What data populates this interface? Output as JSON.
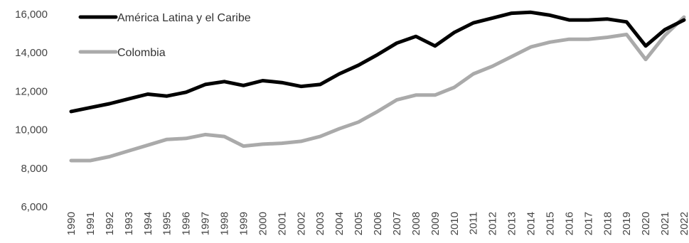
{
  "chart_data": {
    "type": "line",
    "title": "",
    "xlabel": "",
    "ylabel": "",
    "x": [
      "1990",
      "1991",
      "1992",
      "1993",
      "1994",
      "1995",
      "1996",
      "1997",
      "1998",
      "1999",
      "2000",
      "2001",
      "2002",
      "2003",
      "2004",
      "2005",
      "2006",
      "2007",
      "2008",
      "2009",
      "2010",
      "2011",
      "2012",
      "2013",
      "2014",
      "2015",
      "2016",
      "2017",
      "2018",
      "2019",
      "2020",
      "2021",
      "2022"
    ],
    "ylim": [
      6000,
      16000
    ],
    "yticks": [
      6000,
      8000,
      10000,
      12000,
      14000,
      16000
    ],
    "ytick_labels": [
      "6,000",
      "8,000",
      "10,000",
      "12,000",
      "14,000",
      "16,000"
    ],
    "grid": false,
    "legend_position": "top-left",
    "series": [
      {
        "name": "América Latina y el Caribe",
        "color": "#000000",
        "values": [
          10950,
          11150,
          11350,
          11600,
          11850,
          11750,
          11950,
          12350,
          12500,
          12300,
          12550,
          12450,
          12250,
          12350,
          12900,
          13350,
          13900,
          14500,
          14850,
          14350,
          15050,
          15550,
          15800,
          16050,
          16100,
          15950,
          15700,
          15700,
          15750,
          15600,
          14350,
          15200,
          15700
        ]
      },
      {
        "name": "Colombia",
        "color": "#aaaaaa",
        "values": [
          8400,
          8400,
          8600,
          8900,
          9200,
          9500,
          9550,
          9750,
          9650,
          9150,
          9250,
          9300,
          9400,
          9650,
          10050,
          10400,
          10950,
          11550,
          11800,
          11800,
          12200,
          12900,
          13300,
          13800,
          14300,
          14550,
          14700,
          14700,
          14800,
          14950,
          13650,
          14900,
          15850
        ]
      }
    ]
  }
}
